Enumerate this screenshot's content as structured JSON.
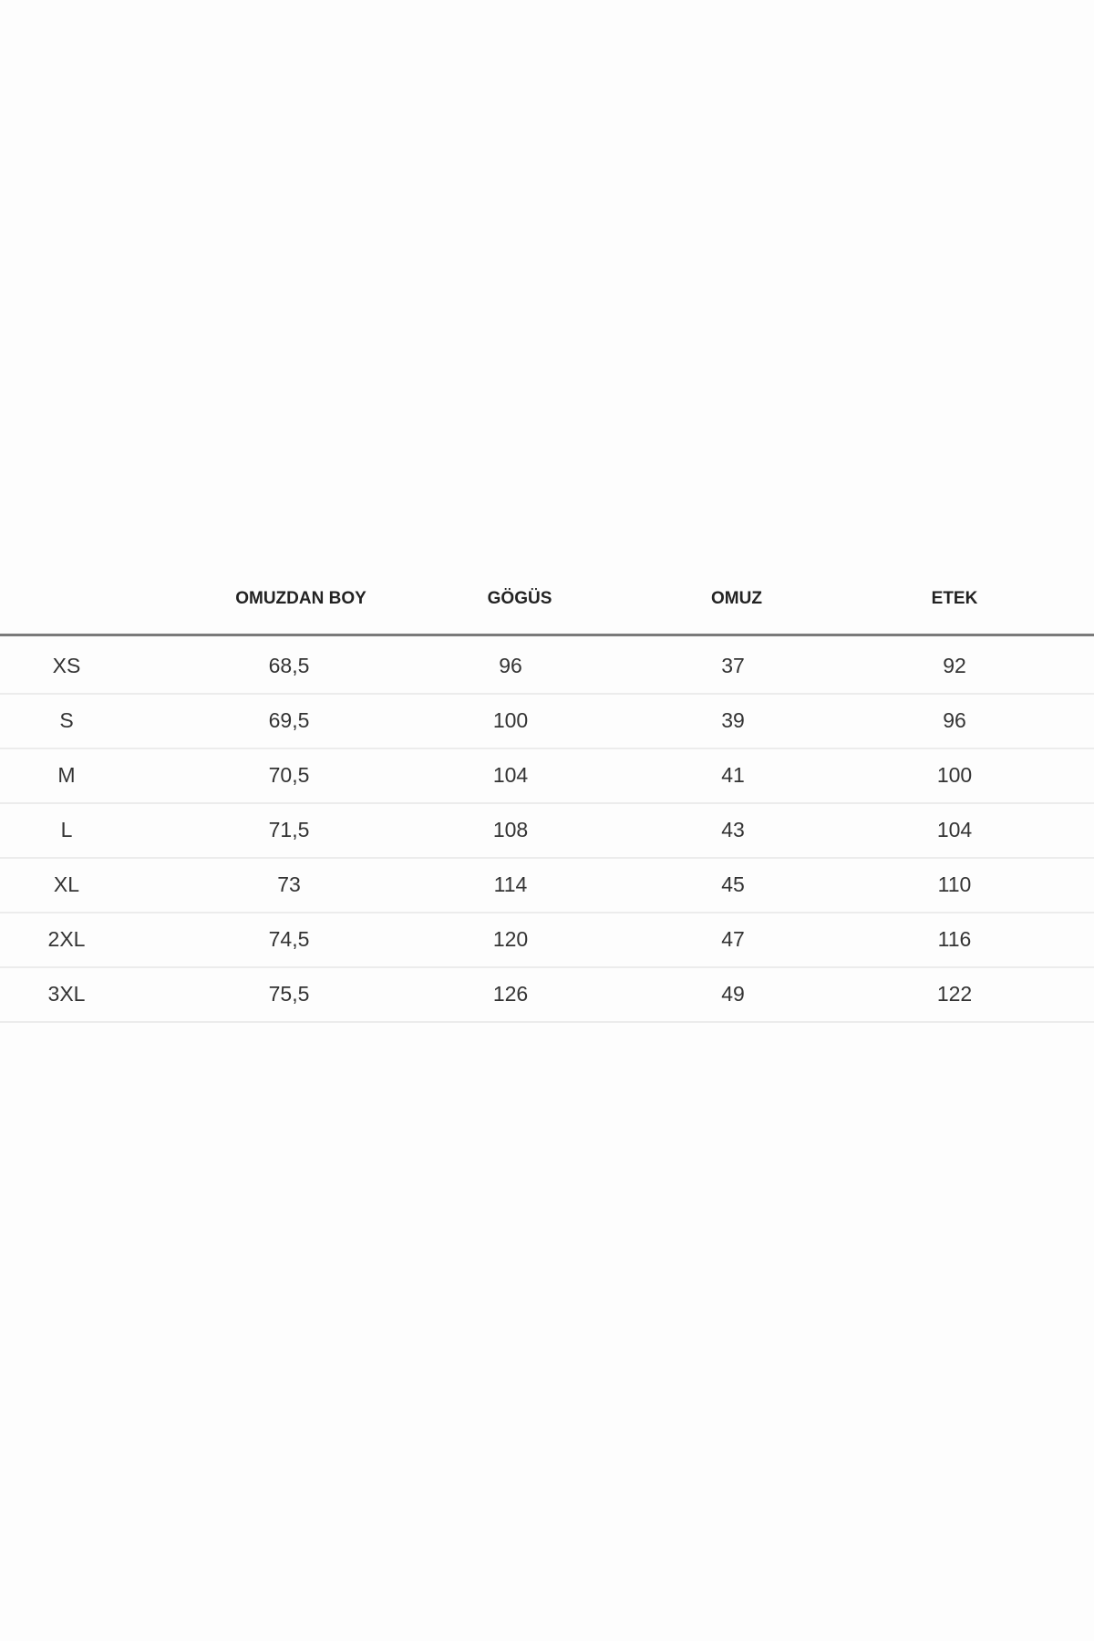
{
  "table": {
    "headers": [
      "",
      "OMUZDAN BOY",
      "GÖGÜS",
      "OMUZ",
      "ETEK"
    ],
    "rows": [
      [
        "XS",
        "68,5",
        "96",
        "37",
        "92"
      ],
      [
        "S",
        "69,5",
        "100",
        "39",
        "96"
      ],
      [
        "M",
        "70,5",
        "104",
        "41",
        "100"
      ],
      [
        "L",
        "71,5",
        "108",
        "43",
        "104"
      ],
      [
        "XL",
        "73",
        "114",
        "45",
        "110"
      ],
      [
        "2XL",
        "74,5",
        "120",
        "47",
        "116"
      ],
      [
        "3XL",
        "75,5",
        "126",
        "49",
        "122"
      ]
    ]
  }
}
